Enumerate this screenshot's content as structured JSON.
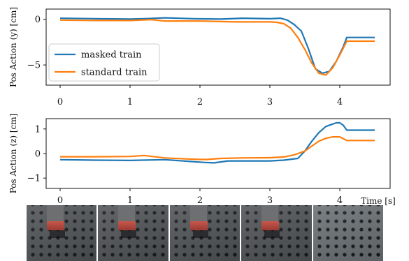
{
  "chart_data": [
    {
      "type": "line",
      "ylabel": "Pos Action (y) [cm]",
      "xlabel": "",
      "xlim": [
        -0.2,
        4.72
      ],
      "ylim": [
        -7.2,
        1.1
      ],
      "xticks": [
        "0",
        "1",
        "2",
        "3",
        "4"
      ],
      "yticks": [
        "0",
        "−5"
      ],
      "ytick_values": [
        0,
        -5
      ],
      "legend": {
        "position": "lower-left",
        "entries": [
          "masked train",
          "standard train"
        ]
      },
      "grid": false,
      "series": [
        {
          "name": "masked train",
          "color": "#1f77b4",
          "x": [
            0,
            0.5,
            1.0,
            1.2,
            1.5,
            1.9,
            2.3,
            2.6,
            3.0,
            3.15,
            3.25,
            3.35,
            3.45,
            3.55,
            3.65,
            3.75,
            3.85,
            3.95,
            4.05,
            4.1,
            4.5
          ],
          "y": [
            0.1,
            0.05,
            0.0,
            0.05,
            0.15,
            0.05,
            0.0,
            0.1,
            0.05,
            0.1,
            -0.1,
            -0.6,
            -1.3,
            -3.2,
            -5.4,
            -5.9,
            -5.7,
            -4.6,
            -3.0,
            -2.0,
            -2.0
          ]
        },
        {
          "name": "standard train",
          "color": "#ff7f0e",
          "x": [
            0,
            0.5,
            1.0,
            1.3,
            1.5,
            2.0,
            2.5,
            3.0,
            3.1,
            3.2,
            3.3,
            3.4,
            3.5,
            3.6,
            3.7,
            3.8,
            3.9,
            4.0,
            4.1,
            4.5
          ],
          "y": [
            -0.1,
            -0.15,
            -0.15,
            -0.05,
            -0.2,
            -0.2,
            -0.3,
            -0.3,
            -0.35,
            -0.5,
            -1.0,
            -2.0,
            -3.3,
            -4.8,
            -5.9,
            -6.1,
            -5.3,
            -3.9,
            -2.4,
            -2.4
          ]
        }
      ]
    },
    {
      "type": "line",
      "ylabel": "Pos Action (z) [cm]",
      "xlabel": "Time [s]",
      "xlim": [
        -0.2,
        4.72
      ],
      "ylim": [
        -1.42,
        1.42
      ],
      "xticks": [
        "0",
        "1",
        "2",
        "3",
        "4"
      ],
      "yticks": [
        "1",
        "0",
        "−1"
      ],
      "ytick_values": [
        1,
        0,
        -1
      ],
      "grid": false,
      "series": [
        {
          "name": "masked train",
          "color": "#1f77b4",
          "x": [
            0,
            0.5,
            1.0,
            1.5,
            1.9,
            2.05,
            2.2,
            2.4,
            2.7,
            3.0,
            3.2,
            3.4,
            3.5,
            3.6,
            3.7,
            3.8,
            3.9,
            3.95,
            4.0,
            4.05,
            4.1,
            4.5
          ],
          "y": [
            -0.25,
            -0.27,
            -0.28,
            -0.25,
            -0.33,
            -0.36,
            -0.38,
            -0.3,
            -0.3,
            -0.3,
            -0.27,
            -0.2,
            0.1,
            0.5,
            0.85,
            1.1,
            1.2,
            1.25,
            1.25,
            1.15,
            0.95,
            0.95
          ]
        },
        {
          "name": "standard train",
          "color": "#ff7f0e",
          "x": [
            0,
            0.5,
            1.0,
            1.2,
            1.5,
            1.8,
            2.0,
            2.1,
            2.3,
            2.6,
            3.0,
            3.2,
            3.35,
            3.5,
            3.6,
            3.7,
            3.8,
            3.9,
            4.0,
            4.1,
            4.5
          ],
          "y": [
            -0.13,
            -0.13,
            -0.12,
            -0.08,
            -0.18,
            -0.22,
            -0.24,
            -0.24,
            -0.2,
            -0.18,
            -0.17,
            -0.14,
            -0.05,
            0.1,
            0.3,
            0.5,
            0.62,
            0.68,
            0.68,
            0.53,
            0.53
          ]
        }
      ]
    }
  ],
  "image_strip": {
    "frames": [
      "frame-1",
      "frame-2",
      "frame-3",
      "frame-4",
      "frame-5"
    ]
  }
}
